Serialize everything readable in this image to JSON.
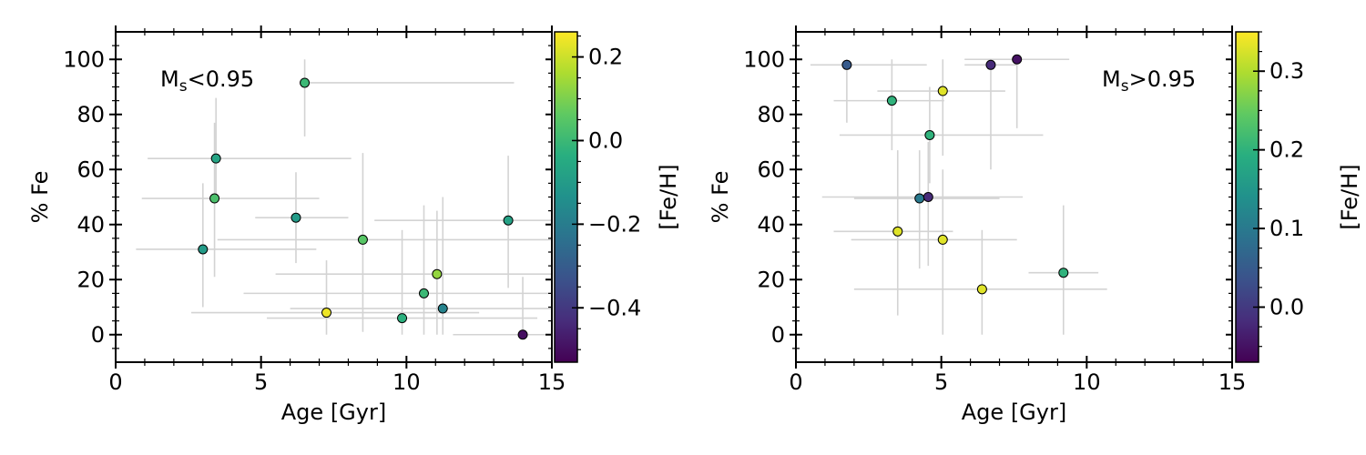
{
  "chart_data": [
    {
      "type": "scatter",
      "annotation_main": "M",
      "annotation_sub": "s",
      "annotation_rest": "<0.95",
      "xlabel": "Age [Gyr]",
      "ylabel": "% Fe",
      "xlim": [
        0,
        15
      ],
      "ylim": [
        -10,
        110
      ],
      "xticks": [
        0,
        5,
        10,
        15
      ],
      "yticks": [
        0,
        20,
        40,
        60,
        80,
        100
      ],
      "colorbar": {
        "label": "[Fe/H]",
        "range": [
          -0.53,
          0.26
        ],
        "ticks": [
          0.2,
          0.0,
          -0.2,
          -0.4
        ],
        "tick_labels": [
          "0.2",
          "0.0",
          "−0.2",
          "−0.4"
        ],
        "colormap": "viridis"
      },
      "points": [
        {
          "x": 6.5,
          "y": 91.5,
          "xerr": [
            6.5,
            13.7
          ],
          "yerr": [
            72,
            100
          ],
          "c": 0.0
        },
        {
          "x": 3.45,
          "y": 64,
          "xerr": [
            1.1,
            8.1
          ],
          "yerr": [
            50,
            86
          ],
          "c": -0.07
        },
        {
          "x": 3.4,
          "y": 49.5,
          "xerr": [
            0.9,
            7.0
          ],
          "yerr": [
            21,
            77
          ],
          "c": 0.03
        },
        {
          "x": 3.0,
          "y": 31,
          "xerr": [
            0.7,
            6.9
          ],
          "yerr": [
            10,
            55
          ],
          "c": -0.1
        },
        {
          "x": 6.2,
          "y": 42.5,
          "xerr": [
            4.8,
            8.0
          ],
          "yerr": [
            26,
            59
          ],
          "c": -0.1
        },
        {
          "x": 8.5,
          "y": 34.5,
          "xerr": [
            3.5,
            15
          ],
          "yerr": [
            1,
            66
          ],
          "c": 0.05
        },
        {
          "x": 13.5,
          "y": 41.5,
          "xerr": [
            8.9,
            15
          ],
          "yerr": [
            17,
            65
          ],
          "c": -0.08
        },
        {
          "x": 11.05,
          "y": 22,
          "xerr": [
            5.5,
            15
          ],
          "yerr": [
            0,
            45
          ],
          "c": 0.13
        },
        {
          "x": 10.6,
          "y": 15,
          "xerr": [
            4.4,
            15
          ],
          "yerr": [
            0,
            47
          ],
          "c": 0.0
        },
        {
          "x": 7.25,
          "y": 8,
          "xerr": [
            2.6,
            12.5
          ],
          "yerr": [
            0,
            27
          ],
          "c": 0.24
        },
        {
          "x": 9.85,
          "y": 6,
          "xerr": [
            5.2,
            14.5
          ],
          "yerr": [
            0,
            38
          ],
          "c": -0.03
        },
        {
          "x": 11.25,
          "y": 9.5,
          "xerr": [
            6.0,
            15
          ],
          "yerr": [
            0,
            50
          ],
          "c": -0.18
        },
        {
          "x": 14.0,
          "y": 0,
          "xerr": [
            11.6,
            15
          ],
          "yerr": [
            0,
            21
          ],
          "c": -0.5
        }
      ]
    },
    {
      "type": "scatter",
      "annotation_main": "M",
      "annotation_sub": "s",
      "annotation_rest": ">0.95",
      "xlabel": "Age [Gyr]",
      "ylabel": "% Fe",
      "xlim": [
        0,
        15
      ],
      "ylim": [
        -10,
        110
      ],
      "xticks": [
        0,
        5,
        10,
        15
      ],
      "yticks": [
        0,
        20,
        40,
        60,
        80,
        100
      ],
      "colorbar": {
        "label": "[Fe/H]",
        "range": [
          -0.07,
          0.35
        ],
        "ticks": [
          0.3,
          0.2,
          0.1,
          0.0
        ],
        "tick_labels": [
          "0.3",
          "0.2",
          "0.1",
          "0.0"
        ],
        "colormap": "viridis"
      },
      "points": [
        {
          "x": 1.75,
          "y": 98,
          "xerr": [
            0.5,
            4.5
          ],
          "yerr": [
            77,
            100
          ],
          "c": 0.05
        },
        {
          "x": 6.7,
          "y": 98,
          "xerr": [
            5.8,
            7.6
          ],
          "yerr": [
            60,
            100
          ],
          "c": -0.02
        },
        {
          "x": 7.6,
          "y": 100,
          "xerr": [
            5.8,
            9.4
          ],
          "yerr": [
            75,
            100
          ],
          "c": -0.05
        },
        {
          "x": 3.3,
          "y": 85,
          "xerr": [
            1.3,
            5.1
          ],
          "yerr": [
            67,
            100
          ],
          "c": 0.2
        },
        {
          "x": 5.05,
          "y": 88.5,
          "xerr": [
            2.8,
            7.2
          ],
          "yerr": [
            65,
            100
          ],
          "c": 0.33
        },
        {
          "x": 4.6,
          "y": 72.5,
          "xerr": [
            1.5,
            8.5
          ],
          "yerr": [
            55,
            90
          ],
          "c": 0.2
        },
        {
          "x": 4.25,
          "y": 49.5,
          "xerr": [
            2.0,
            7.0
          ],
          "yerr": [
            24,
            67
          ],
          "c": 0.1
        },
        {
          "x": 4.55,
          "y": 50,
          "xerr": [
            0.9,
            7.8
          ],
          "yerr": [
            25,
            70
          ],
          "c": -0.02
        },
        {
          "x": 3.5,
          "y": 37.5,
          "xerr": [
            1.3,
            5.4
          ],
          "yerr": [
            7,
            67
          ],
          "c": 0.33
        },
        {
          "x": 5.05,
          "y": 34.5,
          "xerr": [
            1.9,
            7.6
          ],
          "yerr": [
            0,
            60
          ],
          "c": 0.33
        },
        {
          "x": 9.2,
          "y": 22.5,
          "xerr": [
            8.0,
            10.4
          ],
          "yerr": [
            0,
            47
          ],
          "c": 0.2
        },
        {
          "x": 6.4,
          "y": 16.5,
          "xerr": [
            2.0,
            10.7
          ],
          "yerr": [
            0,
            38
          ],
          "c": 0.33
        }
      ]
    }
  ]
}
